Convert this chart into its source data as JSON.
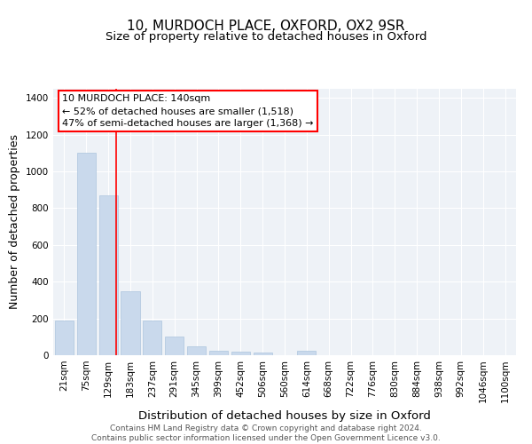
{
  "title": "10, MURDOCH PLACE, OXFORD, OX2 9SR",
  "subtitle": "Size of property relative to detached houses in Oxford",
  "xlabel": "Distribution of detached houses by size in Oxford",
  "ylabel": "Number of detached properties",
  "bar_categories": [
    "21sqm",
    "75sqm",
    "129sqm",
    "183sqm",
    "237sqm",
    "291sqm",
    "345sqm",
    "399sqm",
    "452sqm",
    "506sqm",
    "560sqm",
    "614sqm",
    "668sqm",
    "722sqm",
    "776sqm",
    "830sqm",
    "884sqm",
    "938sqm",
    "992sqm",
    "1046sqm",
    "1100sqm"
  ],
  "bar_values": [
    190,
    1100,
    870,
    350,
    190,
    100,
    47,
    22,
    20,
    15,
    0,
    25,
    0,
    0,
    0,
    0,
    0,
    0,
    0,
    0,
    0
  ],
  "bar_color": "#c9d9ec",
  "bar_edgecolor": "#adc4de",
  "red_line_x": 2.35,
  "annotation_text": "10 MURDOCH PLACE: 140sqm\n← 52% of detached houses are smaller (1,518)\n47% of semi-detached houses are larger (1,368) →",
  "annotation_box_color": "white",
  "annotation_box_edgecolor": "red",
  "vline_color": "red",
  "ylim": [
    0,
    1450
  ],
  "yticks": [
    0,
    200,
    400,
    600,
    800,
    1000,
    1200,
    1400
  ],
  "footer_text": "Contains HM Land Registry data © Crown copyright and database right 2024.\nContains public sector information licensed under the Open Government Licence v3.0.",
  "plot_bg_color": "#eef2f7",
  "title_fontsize": 11,
  "subtitle_fontsize": 9.5,
  "axis_label_fontsize": 9,
  "tick_fontsize": 7.5,
  "footer_fontsize": 6.5,
  "annot_fontsize": 8
}
